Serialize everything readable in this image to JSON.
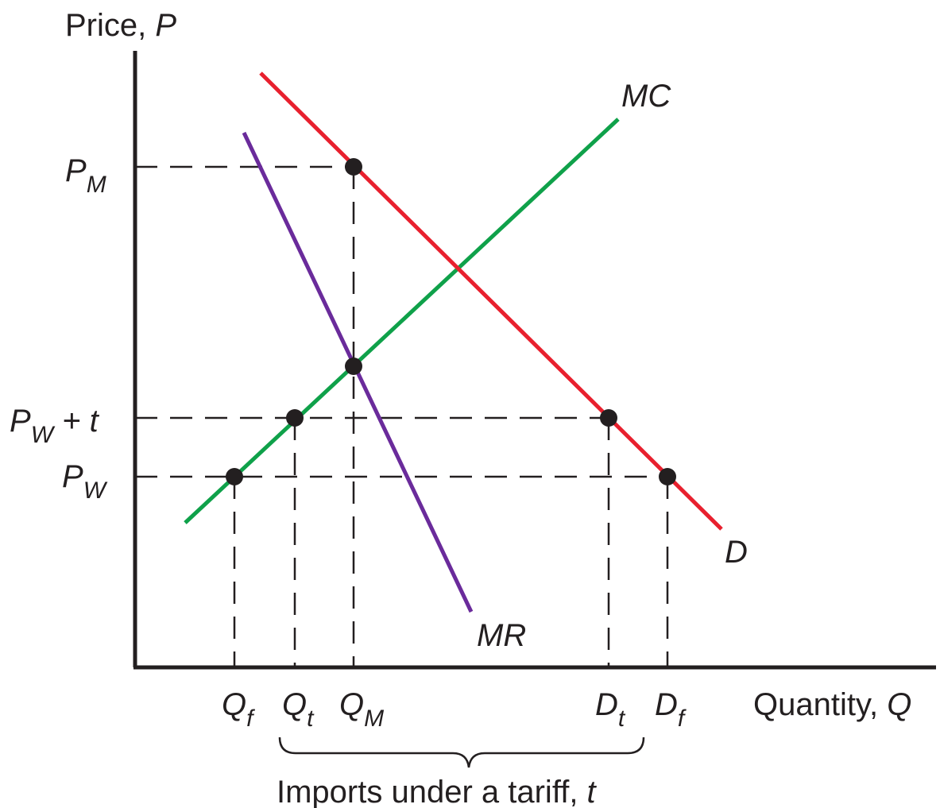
{
  "colors": {
    "demand": "#e8202e",
    "marginal_cost": "#0fa14a",
    "marginal_revenue": "#6a2b9b",
    "axis": "#231f20",
    "point": "#231f20"
  },
  "axes": {
    "y_label": "Price, ",
    "y_symbol": "P",
    "x_label": "Quantity, ",
    "x_symbol": "Q"
  },
  "curves": {
    "demand": "D",
    "marginal_cost": "MC",
    "marginal_revenue": "MR"
  },
  "price_labels": {
    "pm": {
      "main": "P",
      "sub": "M"
    },
    "pw_t": {
      "main": "P",
      "sub": "W",
      "suffix": " + t"
    },
    "pw": {
      "main": "P",
      "sub": "W"
    }
  },
  "quantity_labels": {
    "qf": {
      "main": "Q",
      "sub": "f"
    },
    "qt": {
      "main": "Q",
      "sub": "t"
    },
    "qm": {
      "main": "Q",
      "sub": "M"
    },
    "dt": {
      "main": "D",
      "sub": "t"
    },
    "df": {
      "main": "D",
      "sub": "f"
    }
  },
  "brace_label": {
    "text": "Imports under a tariff, ",
    "symbol": "t"
  }
}
